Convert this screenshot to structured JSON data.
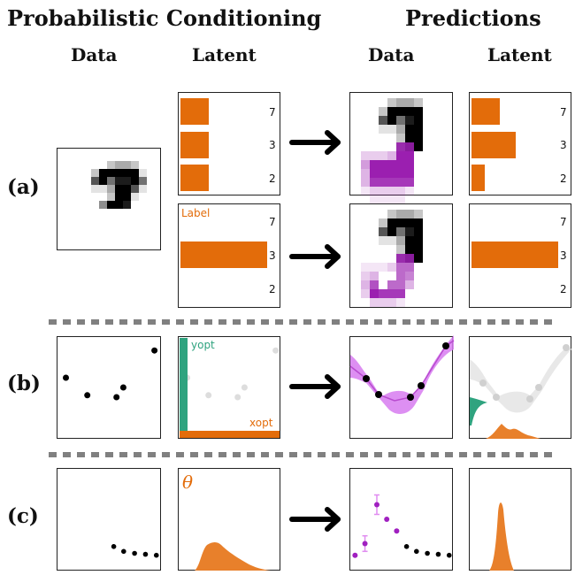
{
  "headers": {
    "group_left": "Probabilistic Conditioning",
    "group_right": "Predictions",
    "columns": [
      "Data",
      "Latent",
      "Data",
      "Latent"
    ]
  },
  "rows": [
    {
      "label": "(a)"
    },
    {
      "label": "(b)"
    },
    {
      "label": "(c)"
    }
  ],
  "colors": {
    "orange": "#E36C0A",
    "orange_soft": "#E8802B",
    "teal": "#2FA37F",
    "magenta": "#9B1FB0",
    "violet_band": "#D77BF0",
    "separator": "#808080",
    "grey_point": "#CCCCCC"
  },
  "panel_a": {
    "latent_ticks": [
      "7",
      "3",
      "2"
    ],
    "condition_1_latent": {
      "values": [
        0.28,
        0.28,
        0.28
      ]
    },
    "condition_2_latent": {
      "label": "Label",
      "values": [
        0.0,
        1.0,
        0.0
      ]
    },
    "prediction_1_latent": {
      "values": [
        0.28,
        0.45,
        0.13
      ]
    },
    "prediction_2_latent": {
      "values": [
        0.0,
        1.0,
        0.0
      ]
    }
  },
  "panel_b": {
    "data_points": [
      [
        0.05,
        0.6
      ],
      [
        0.27,
        0.42
      ],
      [
        0.57,
        0.4
      ],
      [
        0.64,
        0.5
      ],
      [
        0.96,
        0.88
      ]
    ],
    "latent_labels": {
      "y": "yopt",
      "x": "xopt"
    }
  },
  "panel_c": {
    "data_points": [
      [
        0.55,
        0.22
      ],
      [
        0.65,
        0.17
      ],
      [
        0.76,
        0.15
      ],
      [
        0.87,
        0.14
      ],
      [
        0.98,
        0.13
      ]
    ],
    "latent_label": "θ",
    "prediction_points": [
      {
        "x": 0.03,
        "y": 0.13,
        "err": 0
      },
      {
        "x": 0.13,
        "y": 0.25,
        "err": 0.08
      },
      {
        "x": 0.25,
        "y": 0.65,
        "err": 0.1
      },
      {
        "x": 0.35,
        "y": 0.5,
        "err": 0
      },
      {
        "x": 0.45,
        "y": 0.38,
        "err": 0
      }
    ]
  }
}
